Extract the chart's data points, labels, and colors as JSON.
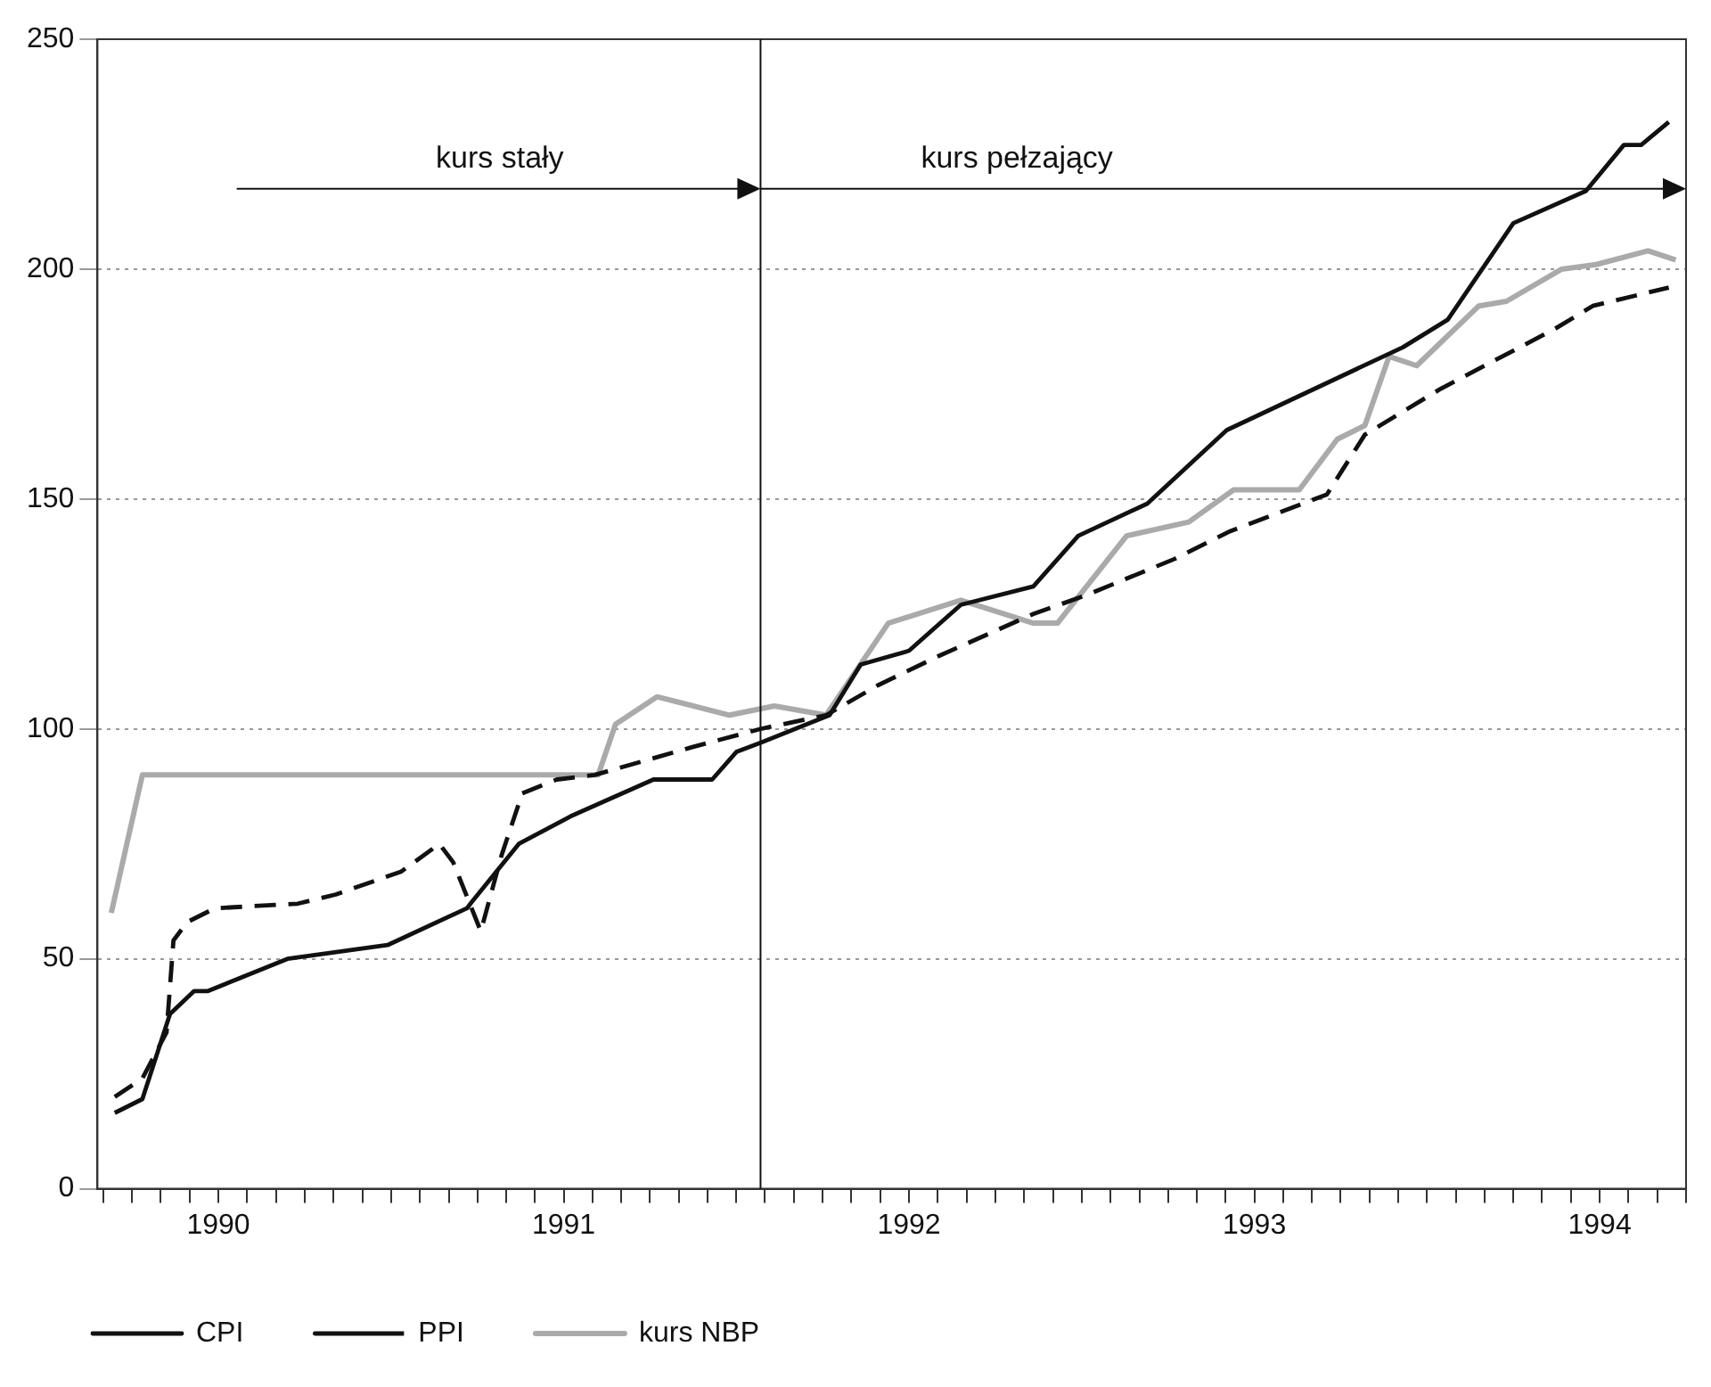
{
  "chart_data": {
    "type": "line",
    "xlim": [
      1989.65,
      1994.25
    ],
    "ylim": [
      0,
      250
    ],
    "yticks": [
      0,
      50,
      100,
      150,
      200,
      250
    ],
    "xticks": [
      {
        "value": 1989.667,
        "label": null
      },
      {
        "value": 1989.75,
        "label": null
      },
      {
        "value": 1989.833,
        "label": null
      },
      {
        "value": 1989.917,
        "label": null
      },
      1990,
      {
        "value": 1990.083,
        "label": null
      },
      {
        "value": 1990.167,
        "label": null
      },
      {
        "value": 1990.25,
        "label": null
      },
      {
        "value": 1990.333,
        "label": null
      },
      {
        "value": 1990.417,
        "label": null
      },
      {
        "value": 1990.5,
        "label": null
      },
      {
        "value": 1990.583,
        "label": null
      },
      {
        "value": 1990.667,
        "label": null
      },
      {
        "value": 1990.75,
        "label": null
      },
      {
        "value": 1990.833,
        "label": null
      },
      {
        "value": 1990.917,
        "label": null
      },
      1991,
      {
        "value": 1991.083,
        "label": null
      },
      {
        "value": 1991.167,
        "label": null
      },
      {
        "value": 1991.25,
        "label": null
      },
      {
        "value": 1991.333,
        "label": null
      },
      {
        "value": 1991.417,
        "label": null
      },
      {
        "value": 1991.5,
        "label": null
      },
      {
        "value": 1991.583,
        "label": null
      },
      {
        "value": 1991.667,
        "label": null
      },
      {
        "value": 1991.75,
        "label": null
      },
      {
        "value": 1991.833,
        "label": null
      },
      {
        "value": 1991.917,
        "label": null
      },
      1992,
      {
        "value": 1992.083,
        "label": null
      },
      {
        "value": 1992.167,
        "label": null
      },
      {
        "value": 1992.25,
        "label": null
      },
      {
        "value": 1992.333,
        "label": null
      },
      {
        "value": 1992.417,
        "label": null
      },
      {
        "value": 1992.5,
        "label": null
      },
      {
        "value": 1992.583,
        "label": null
      },
      {
        "value": 1992.667,
        "label": null
      },
      {
        "value": 1992.75,
        "label": null
      },
      {
        "value": 1992.833,
        "label": null
      },
      {
        "value": 1992.917,
        "label": null
      },
      1993,
      {
        "value": 1993.083,
        "label": null
      },
      {
        "value": 1993.167,
        "label": null
      },
      {
        "value": 1993.25,
        "label": null
      },
      {
        "value": 1993.333,
        "label": null
      },
      {
        "value": 1993.417,
        "label": null
      },
      {
        "value": 1993.5,
        "label": null
      },
      {
        "value": 1993.583,
        "label": null
      },
      {
        "value": 1993.667,
        "label": null
      },
      {
        "value": 1993.75,
        "label": null
      },
      {
        "value": 1993.833,
        "label": null
      },
      {
        "value": 1993.917,
        "label": null
      },
      1994,
      {
        "value": 1994.083,
        "label": null
      },
      {
        "value": 1994.167,
        "label": null
      },
      {
        "value": 1994.25,
        "label": null
      }
    ],
    "grid": "y",
    "legend": "bottom left",
    "marker": "none",
    "series": [
      {
        "name": "CPI",
        "color": "#111111",
        "line_style": "solid",
        "x": [
          1989.7,
          1989.78,
          1989.86,
          1989.93,
          1989.97,
          1990.2,
          1990.49,
          1990.72,
          1990.73,
          1990.87,
          1991.02,
          1991.11,
          1991.26,
          1991.43,
          1991.5,
          1991.57,
          1991.77,
          1991.86,
          1992.0,
          1992.15,
          1992.36,
          1992.49,
          1992.69,
          1992.92,
          1993.43,
          1993.56,
          1993.75,
          1993.96,
          1994.07,
          1994.12,
          1994.2
        ],
        "values": [
          16.5,
          19.5,
          38,
          43,
          43,
          50,
          53,
          61,
          62,
          75,
          81,
          84,
          89,
          89,
          95,
          97,
          103,
          114,
          117,
          127,
          131,
          142,
          149,
          165,
          183,
          189,
          210,
          217,
          227,
          227,
          232
        ]
      },
      {
        "name": "PPI",
        "color": "#111111",
        "line_style": "dashed",
        "x": [
          1989.7,
          1989.78,
          1989.85,
          1989.87,
          1989.91,
          1989.99,
          1990.23,
          1990.34,
          1990.53,
          1990.64,
          1990.68,
          1990.76,
          1990.82,
          1990.88,
          1990.98,
          1991.09,
          1991.37,
          1991.57,
          1991.76,
          1991.91,
          1992.09,
          1992.36,
          1992.51,
          1992.77,
          1992.93,
          1993.21,
          1993.32,
          1993.54,
          1993.87,
          1993.98,
          1994.2
        ],
        "values": [
          20,
          24,
          34,
          54,
          58,
          61,
          62,
          64,
          69,
          75,
          71,
          56,
          72.5,
          86,
          89,
          90,
          96,
          100,
          103,
          109.5,
          116,
          125,
          129,
          137,
          143,
          151,
          164,
          174,
          187,
          192,
          196
        ]
      },
      {
        "name": "kurs NBP",
        "color": "#aaaaaa",
        "line_style": "solid",
        "x": [
          1989.69,
          1989.78,
          1991.1,
          1991.15,
          1991.27,
          1991.48,
          1991.61,
          1991.76,
          1991.94,
          1992.15,
          1992.36,
          1992.43,
          1992.63,
          1992.81,
          1992.94,
          1993.13,
          1993.24,
          1993.32,
          1993.39,
          1993.47,
          1993.65,
          1993.73,
          1993.89,
          1993.99,
          1994.14,
          1994.22
        ],
        "values": [
          60,
          90,
          90,
          101,
          107,
          103,
          105,
          103,
          123,
          128,
          123,
          123,
          142,
          145,
          152,
          152,
          163,
          166,
          181,
          179,
          192,
          193,
          200,
          201,
          204,
          202
        ]
      }
    ],
    "ref_lines": [
      {
        "axis": "x",
        "value": 1991.57,
        "color": "#111111"
      }
    ],
    "annotations": [
      "kurs stały",
      "kurs pełzający"
    ]
  }
}
